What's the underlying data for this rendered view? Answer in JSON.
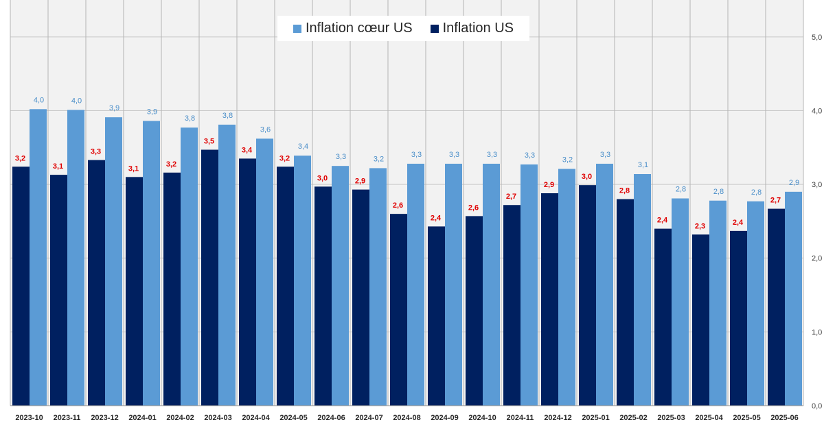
{
  "chart_data": {
    "type": "bar",
    "title": "",
    "xlabel": "",
    "ylabel": "",
    "ylim": [
      0,
      5.5
    ],
    "y_ticks": [
      "0,0",
      "1,0",
      "2,0",
      "3,0",
      "4,0",
      "5,0"
    ],
    "y_tick_values": [
      0,
      1,
      2,
      3,
      4,
      5
    ],
    "y_axis_side": "right",
    "grid": true,
    "legend_position": "top-center",
    "categories": [
      "2023-10",
      "2023-11",
      "2023-12",
      "2024-01",
      "2024-02",
      "2024-03",
      "2024-04",
      "2024-05",
      "2024-06",
      "2024-07",
      "2024-08",
      "2024-09",
      "2024-10",
      "2024-11",
      "2024-12",
      "2025-01",
      "2025-02",
      "2025-03",
      "2025-04",
      "2025-05",
      "2025-06"
    ],
    "series": [
      {
        "name": "Inflation US",
        "color": "#002060",
        "label_color": "#e00000",
        "values": [
          3.24,
          3.13,
          3.33,
          3.1,
          3.16,
          3.47,
          3.35,
          3.24,
          2.97,
          2.93,
          2.6,
          2.43,
          2.57,
          2.72,
          2.88,
          2.99,
          2.8,
          2.4,
          2.32,
          2.37,
          2.67
        ],
        "labels": [
          "3,2",
          "3,1",
          "3,3",
          "3,1",
          "3,2",
          "3,5",
          "3,4",
          "3,2",
          "3,0",
          "2,9",
          "2,6",
          "2,4",
          "2,6",
          "2,7",
          "2,9",
          "3,0",
          "2,8",
          "2,4",
          "2,3",
          "2,4",
          "2,7"
        ]
      },
      {
        "name": "Inflation cœur US",
        "color": "#5b9bd5",
        "label_color": "#4a8ec9",
        "values": [
          4.02,
          4.01,
          3.91,
          3.86,
          3.77,
          3.81,
          3.62,
          3.39,
          3.25,
          3.22,
          3.28,
          3.28,
          3.28,
          3.27,
          3.21,
          3.28,
          3.14,
          2.81,
          2.78,
          2.77,
          2.9
        ],
        "labels": [
          "4,0",
          "4,0",
          "3,9",
          "3,9",
          "3,8",
          "3,8",
          "3,6",
          "3,4",
          "3,3",
          "3,2",
          "3,3",
          "3,3",
          "3,3",
          "3,3",
          "3,2",
          "3,3",
          "3,1",
          "2,8",
          "2,8",
          "2,8",
          "2,9"
        ]
      }
    ],
    "legend": [
      {
        "name": "Inflation cœur US",
        "color": "#5b9bd5"
      },
      {
        "name": "Inflation US",
        "color": "#002060"
      }
    ]
  }
}
